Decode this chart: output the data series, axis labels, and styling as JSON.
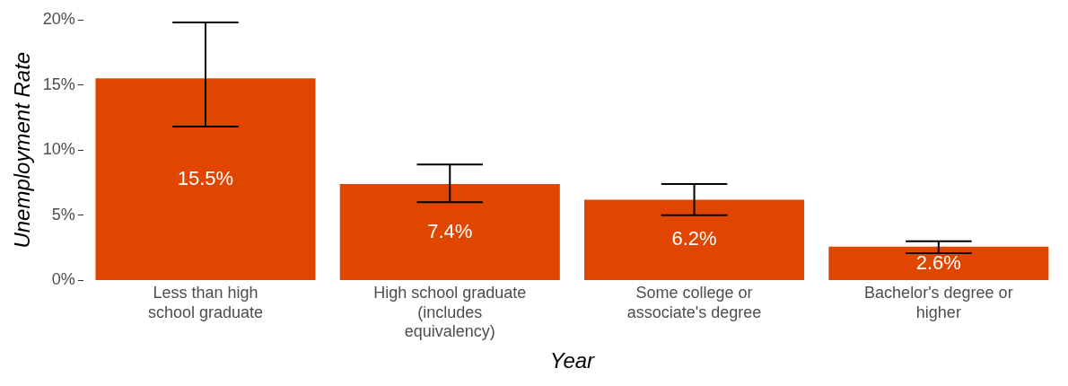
{
  "chart_data": {
    "type": "bar",
    "xlabel": "Year",
    "ylabel": "Unemployment Rate",
    "categories": [
      "Less than high school graduate",
      "High school graduate (includes equivalency)",
      "Some college or associate's degree",
      "Bachelor's degree or higher"
    ],
    "values": [
      15.5,
      7.4,
      6.2,
      2.6
    ],
    "errors": [
      [
        11.8,
        19.8
      ],
      [
        6.0,
        8.9
      ],
      [
        5.0,
        7.4
      ],
      [
        2.1,
        3.0
      ]
    ],
    "value_labels": [
      "15.5%",
      "7.4%",
      "6.2%",
      "2.6%"
    ],
    "color": "#e04600",
    "ylim": [
      0,
      20
    ],
    "yticks": [
      {
        "value": 0,
        "label": "0%"
      },
      {
        "value": 5,
        "label": "5%"
      },
      {
        "value": 10,
        "label": "10%"
      },
      {
        "value": 15,
        "label": "15%"
      },
      {
        "value": 20,
        "label": "20%"
      }
    ],
    "grid": false,
    "legend": false
  }
}
